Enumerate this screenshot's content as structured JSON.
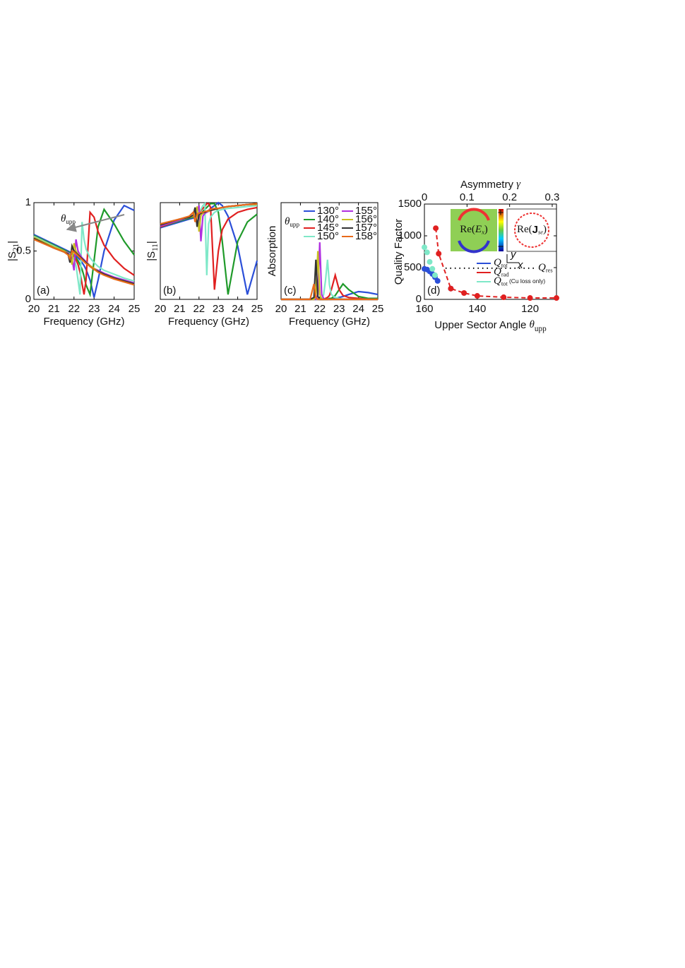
{
  "chart_data": [
    {
      "type": "line",
      "panel_label": "(a)",
      "xlabel": "Frequency (GHz)",
      "ylabel": [
        {
          "t": "|S"
        },
        {
          "t": "21",
          "sub": true
        },
        {
          "t": "|"
        }
      ],
      "annotation": [
        {
          "t": "θ",
          "it": true
        },
        {
          "t": "upp",
          "sub": true
        }
      ],
      "x": [
        20,
        21,
        21.5,
        21.7,
        21.8,
        21.9,
        22,
        22.1,
        22.2,
        22.3,
        22.4,
        22.5,
        22.6,
        22.8,
        23,
        23.2,
        23.5,
        24,
        24.5,
        25
      ],
      "xlim": [
        20,
        25
      ],
      "xticks": [
        20,
        21,
        22,
        23,
        24,
        25
      ],
      "ylim": [
        0,
        1
      ],
      "yticks": [
        0,
        0.5,
        1
      ],
      "series": [
        {
          "color": "#2b4fd8",
          "values": [
            0.67,
            0.57,
            0.52,
            0.5,
            0.49,
            0.48,
            0.46,
            0.45,
            0.43,
            0.41,
            0.38,
            0.35,
            0.31,
            0.2,
            0.02,
            0.2,
            0.5,
            0.82,
            0.97,
            0.92
          ]
        },
        {
          "color": "#1f9a2a",
          "values": [
            0.66,
            0.56,
            0.51,
            0.49,
            0.48,
            0.47,
            0.45,
            0.43,
            0.4,
            0.36,
            0.31,
            0.24,
            0.15,
            0.05,
            0.4,
            0.75,
            0.93,
            0.78,
            0.6,
            0.46
          ]
        },
        {
          "color": "#e02020",
          "values": [
            0.65,
            0.55,
            0.5,
            0.48,
            0.47,
            0.46,
            0.44,
            0.41,
            0.36,
            0.28,
            0.16,
            0.05,
            0.2,
            0.9,
            0.85,
            0.7,
            0.56,
            0.42,
            0.32,
            0.25
          ]
        },
        {
          "color": "#7fe8c8",
          "values": [
            0.65,
            0.55,
            0.5,
            0.48,
            0.47,
            0.45,
            0.42,
            0.35,
            0.2,
            0.05,
            0.8,
            0.62,
            0.52,
            0.43,
            0.38,
            0.34,
            0.3,
            0.26,
            0.22,
            0.19
          ]
        },
        {
          "color": "#b030e0",
          "values": [
            0.64,
            0.54,
            0.5,
            0.48,
            0.46,
            0.42,
            0.3,
            0.62,
            0.5,
            0.46,
            0.43,
            0.41,
            0.39,
            0.35,
            0.32,
            0.3,
            0.27,
            0.23,
            0.2,
            0.17
          ]
        },
        {
          "color": "#c8c020",
          "values": [
            0.64,
            0.54,
            0.5,
            0.47,
            0.45,
            0.36,
            0.58,
            0.5,
            0.47,
            0.44,
            0.42,
            0.4,
            0.38,
            0.35,
            0.32,
            0.29,
            0.26,
            0.22,
            0.19,
            0.16
          ]
        },
        {
          "color": "#333333",
          "values": [
            0.63,
            0.53,
            0.49,
            0.47,
            0.38,
            0.55,
            0.5,
            0.48,
            0.46,
            0.44,
            0.42,
            0.4,
            0.38,
            0.34,
            0.31,
            0.29,
            0.26,
            0.22,
            0.19,
            0.16
          ]
        },
        {
          "color": "#e86a1a",
          "values": [
            0.62,
            0.53,
            0.49,
            0.46,
            0.42,
            0.5,
            0.49,
            0.47,
            0.45,
            0.43,
            0.41,
            0.39,
            0.37,
            0.34,
            0.31,
            0.28,
            0.25,
            0.21,
            0.18,
            0.15
          ]
        }
      ]
    },
    {
      "type": "line",
      "panel_label": "(b)",
      "xlabel": "Frequency (GHz)",
      "ylabel": [
        {
          "t": "|S"
        },
        {
          "t": "11",
          "sub": true
        },
        {
          "t": "|"
        }
      ],
      "x": [
        20,
        21,
        21.5,
        21.7,
        21.8,
        21.9,
        22,
        22.1,
        22.2,
        22.3,
        22.4,
        22.5,
        22.6,
        22.8,
        23,
        23.2,
        23.5,
        24,
        24.5,
        25
      ],
      "xlim": [
        20,
        25
      ],
      "xticks": [
        20,
        21,
        22,
        23,
        24,
        25
      ],
      "ylim": [
        0,
        1
      ],
      "series": [
        {
          "color": "#2b4fd8",
          "values": [
            0.74,
            0.8,
            0.83,
            0.84,
            0.85,
            0.86,
            0.87,
            0.88,
            0.89,
            0.9,
            0.91,
            0.92,
            0.94,
            0.97,
            1.0,
            0.97,
            0.86,
            0.55,
            0.05,
            0.4
          ]
        },
        {
          "color": "#1f9a2a",
          "values": [
            0.75,
            0.81,
            0.84,
            0.85,
            0.86,
            0.87,
            0.88,
            0.89,
            0.91,
            0.93,
            0.95,
            0.97,
            0.99,
            0.99,
            0.9,
            0.6,
            0.05,
            0.6,
            0.8,
            0.88
          ]
        },
        {
          "color": "#e02020",
          "values": [
            0.75,
            0.82,
            0.85,
            0.86,
            0.87,
            0.88,
            0.9,
            0.92,
            0.94,
            0.96,
            0.99,
            0.99,
            0.95,
            0.1,
            0.5,
            0.72,
            0.83,
            0.9,
            0.93,
            0.95
          ]
        },
        {
          "color": "#7fe8c8",
          "values": [
            0.76,
            0.82,
            0.85,
            0.86,
            0.87,
            0.88,
            0.9,
            0.93,
            0.97,
            0.99,
            0.25,
            0.78,
            0.85,
            0.9,
            0.92,
            0.93,
            0.94,
            0.95,
            0.96,
            0.97
          ]
        },
        {
          "color": "#b030e0",
          "values": [
            0.76,
            0.82,
            0.85,
            0.86,
            0.87,
            0.9,
            0.97,
            0.6,
            0.86,
            0.89,
            0.9,
            0.91,
            0.92,
            0.93,
            0.94,
            0.95,
            0.96,
            0.97,
            0.98,
            0.98
          ]
        },
        {
          "color": "#c8c020",
          "values": [
            0.77,
            0.83,
            0.85,
            0.86,
            0.88,
            0.96,
            0.7,
            0.87,
            0.89,
            0.9,
            0.91,
            0.91,
            0.92,
            0.93,
            0.94,
            0.95,
            0.96,
            0.97,
            0.98,
            0.98
          ]
        },
        {
          "color": "#333333",
          "values": [
            0.77,
            0.83,
            0.85,
            0.87,
            0.95,
            0.75,
            0.88,
            0.89,
            0.9,
            0.9,
            0.91,
            0.92,
            0.92,
            0.93,
            0.94,
            0.95,
            0.96,
            0.97,
            0.98,
            0.99
          ]
        },
        {
          "color": "#e86a1a",
          "values": [
            0.78,
            0.83,
            0.86,
            0.9,
            0.8,
            0.88,
            0.89,
            0.9,
            0.9,
            0.91,
            0.91,
            0.92,
            0.93,
            0.94,
            0.94,
            0.95,
            0.96,
            0.97,
            0.98,
            0.99
          ]
        }
      ]
    },
    {
      "type": "line",
      "panel_label": "(c)",
      "xlabel": "Frequency (GHz)",
      "ylabel": "Absorption",
      "legend_title": [
        {
          "t": "θ",
          "it": true
        },
        {
          "t": "upp",
          "sub": true
        }
      ],
      "x": [
        20,
        21,
        21.5,
        21.7,
        21.8,
        21.9,
        22,
        22.1,
        22.2,
        22.3,
        22.4,
        22.5,
        22.6,
        22.8,
        23,
        23.2,
        23.5,
        24,
        24.5,
        25
      ],
      "xlim": [
        20,
        25
      ],
      "xticks": [
        20,
        21,
        22,
        23,
        24,
        25
      ],
      "ylim": [
        0,
        1
      ],
      "series": [
        {
          "name": "130°",
          "color": "#2b4fd8",
          "values": [
            0,
            0,
            0,
            0,
            0,
            0,
            0,
            0,
            0,
            0,
            0,
            0,
            0,
            0.01,
            0.02,
            0.03,
            0.05,
            0.08,
            0.07,
            0.05
          ]
        },
        {
          "name": "140°",
          "color": "#1f9a2a",
          "values": [
            0,
            0,
            0,
            0,
            0,
            0,
            0,
            0,
            0,
            0,
            0,
            0.01,
            0.01,
            0.04,
            0.1,
            0.16,
            0.1,
            0.03,
            0.01,
            0.01
          ]
        },
        {
          "name": "145°",
          "color": "#e02020",
          "values": [
            0,
            0,
            0,
            0,
            0,
            0,
            0,
            0,
            0,
            0.01,
            0.02,
            0.04,
            0.1,
            0.25,
            0.1,
            0.04,
            0.02,
            0.01,
            0,
            0
          ]
        },
        {
          "name": "150°",
          "color": "#7fe8c8",
          "values": [
            0,
            0,
            0,
            0,
            0,
            0,
            0,
            0.01,
            0.05,
            0.2,
            0.41,
            0.15,
            0.05,
            0.02,
            0.01,
            0,
            0,
            0,
            0,
            0
          ]
        },
        {
          "name": "155°",
          "color": "#b030e0",
          "values": [
            0,
            0,
            0,
            0,
            0,
            0.05,
            0.59,
            0.05,
            0.01,
            0,
            0,
            0,
            0,
            0,
            0,
            0,
            0,
            0,
            0,
            0
          ]
        },
        {
          "name": "156°",
          "color": "#c8c020",
          "values": [
            0,
            0,
            0,
            0,
            0.05,
            0.5,
            0.05,
            0,
            0,
            0,
            0,
            0,
            0,
            0,
            0,
            0,
            0,
            0,
            0,
            0
          ]
        },
        {
          "name": "157°",
          "color": "#333333",
          "values": [
            0,
            0,
            0,
            0.02,
            0.41,
            0.03,
            0,
            0,
            0,
            0,
            0,
            0,
            0,
            0,
            0,
            0,
            0,
            0,
            0,
            0
          ]
        },
        {
          "name": "158°",
          "color": "#e86a1a",
          "values": [
            0,
            0,
            0,
            0.16,
            0.02,
            0,
            0,
            0,
            0,
            0,
            0,
            0,
            0,
            0,
            0,
            0,
            0,
            0,
            0,
            0
          ]
        }
      ]
    },
    {
      "type": "scatter",
      "panel_label": "(d)",
      "ylabel": "Quality Factor",
      "xlabel": [
        {
          "t": "Upper Sector Angle "
        },
        {
          "t": "θ",
          "it": true
        },
        {
          "t": "upp",
          "sub": true
        }
      ],
      "x2label": [
        {
          "t": "Asymmetry "
        },
        {
          "t": "γ",
          "it": true
        }
      ],
      "xlim": [
        160,
        110
      ],
      "xticks": [
        160,
        140,
        120
      ],
      "x2lim": [
        0,
        0.31
      ],
      "x2ticks": [
        0,
        0.1,
        0.2,
        0.3
      ],
      "ylim": [
        0,
        1500
      ],
      "yticks": [
        0,
        500,
        1000,
        1500
      ],
      "series": [
        {
          "name": [
            {
              "t": "Q",
              "it": true
            },
            {
              "t": "tot",
              "sub": true
            }
          ],
          "color": "#2b4fd8",
          "x": [
            160,
            159,
            158,
            157,
            156,
            155,
            150
          ],
          "values": [
            480,
            470,
            440,
            400,
            350,
            290,
            170
          ]
        },
        {
          "name": [
            {
              "t": "Q",
              "it": true
            },
            {
              "t": "rad",
              "sub": true
            }
          ],
          "color": "#e02020",
          "line": "dashed",
          "x": [
            155.7,
            154.6,
            150,
            145,
            140,
            130,
            120,
            110
          ],
          "values": [
            1120,
            720,
            170,
            100,
            55,
            33,
            22,
            22
          ]
        },
        {
          "name": [
            {
              "t": "Q",
              "it": true
            },
            {
              "t": "tot",
              "sub": true
            },
            {
              "t": " (Cu loss only)",
              "small": true
            }
          ],
          "color": "#7fe8c8",
          "x": [
            160,
            159,
            158,
            157,
            156
          ],
          "values": [
            820,
            740,
            590,
            480,
            380
          ]
        }
      ],
      "reference_line": {
        "value": 490,
        "label": [
          {
            "t": "Q",
            "it": true
          },
          {
            "t": "res",
            "sub": true
          }
        ]
      },
      "insets": {
        "field": [
          {
            "t": "Re("
          },
          {
            "t": "E",
            "it": true
          },
          {
            "t": "x",
            "sub": true,
            "it": true
          },
          {
            "t": ")"
          }
        ],
        "current": [
          {
            "t": "Re("
          },
          {
            "t": "J",
            "bold": true
          },
          {
            "t": "se",
            "sub": true,
            "it": true
          },
          {
            "t": ")"
          }
        ],
        "colorbar": [
          "+",
          "−"
        ],
        "axes": [
          "y",
          "x"
        ]
      }
    }
  ]
}
